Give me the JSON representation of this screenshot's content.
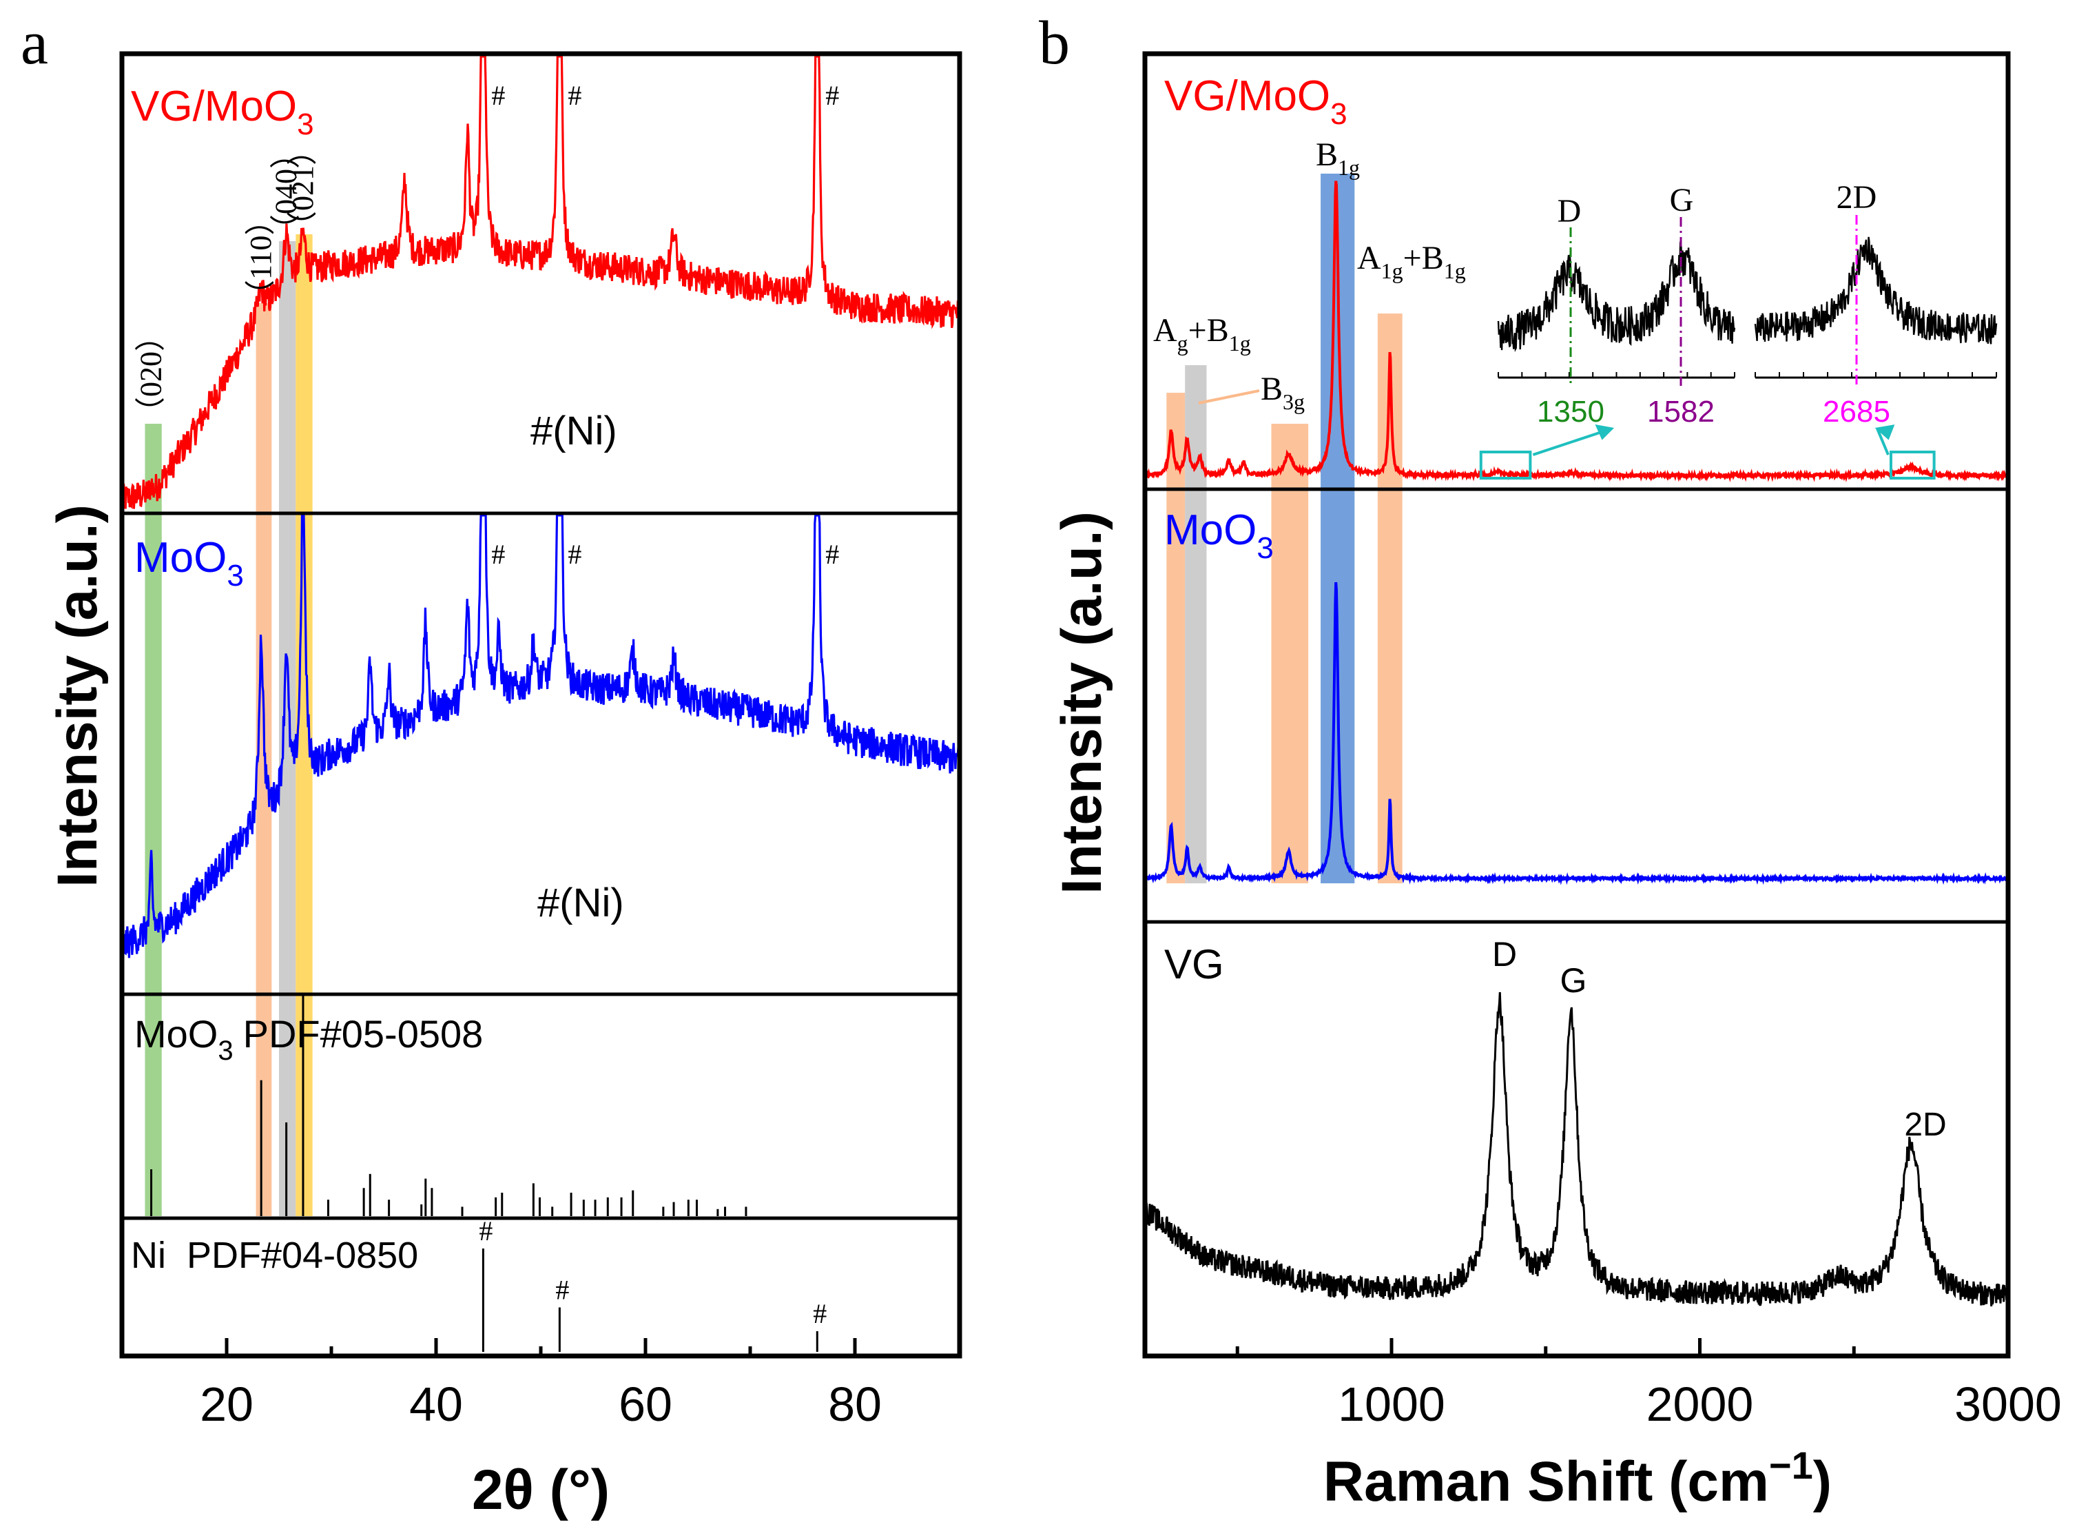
{
  "figure": {
    "panel_a_label": "a",
    "panel_b_label": "b"
  },
  "colors": {
    "vg_moo3": "#ff0000",
    "moo3": "#0000ff",
    "vg": "#000000",
    "band_green": "#8fcc7a",
    "band_orange": "#fbb98a",
    "band_gray": "#c4c4c4",
    "band_yellow": "#ffd24d",
    "band_blue": "#5b8fd6",
    "inset_box": "#1fbfbf",
    "d_line": "#1a8a1a",
    "g_line": "#8b008b",
    "d2_line": "#ff00ff"
  },
  "chart_data": [
    {
      "type": "line",
      "panel": "a",
      "title": "",
      "xlabel": "2θ (°)",
      "ylabel": "Intensity (a.u.)",
      "xlim": [
        10,
        90
      ],
      "xticks": [
        20,
        40,
        60,
        80
      ],
      "series": [
        {
          "name": "VG/MoO3",
          "label_main": "VG/MoO",
          "label_sub": "3",
          "color": "#ff0000",
          "baseline": [
            [
              10,
              0.02
            ],
            [
              13,
              0.04
            ],
            [
              17,
              0.22
            ],
            [
              20,
              0.38
            ],
            [
              23,
              0.55
            ],
            [
              26,
              0.65
            ],
            [
              30,
              0.7
            ],
            [
              40,
              0.74
            ],
            [
              50,
              0.72
            ],
            [
              60,
              0.68
            ],
            [
              70,
              0.64
            ],
            [
              80,
              0.58
            ],
            [
              90,
              0.56
            ]
          ],
          "peaks": [
            [
              12.8,
              0.03,
              0.12
            ],
            [
              23.3,
              0.07,
              0.3
            ],
            [
              25.7,
              0.15,
              0.3
            ],
            [
              27.3,
              0.12,
              0.3
            ],
            [
              37.0,
              0.22,
              0.25
            ],
            [
              43.0,
              0.35,
              0.2
            ],
            [
              44.5,
              2.6,
              0.12
            ],
            [
              51.8,
              2.6,
              0.12
            ],
            [
              62.7,
              0.12,
              0.3
            ],
            [
              76.4,
              2.6,
              0.12
            ]
          ],
          "noise": 0.045,
          "ni_marker_x": [
            44.5,
            51.8,
            76.4
          ],
          "ni_label": "#(Ni)",
          "hkl_labels": [
            {
              "text": "（020）",
              "x": 12.8
            },
            {
              "text": "（110）",
              "x": 23.3
            },
            {
              "text": "（040）",
              "x": 25.7
            },
            {
              "text": "（021）",
              "x": 27.3
            }
          ]
        },
        {
          "name": "MoO3",
          "label_main": "MoO",
          "label_sub": "3",
          "color": "#0000ff",
          "baseline": [
            [
              10,
              0.05
            ],
            [
              15,
              0.12
            ],
            [
              20,
              0.28
            ],
            [
              25,
              0.42
            ],
            [
              30,
              0.56
            ],
            [
              40,
              0.68
            ],
            [
              50,
              0.75
            ],
            [
              60,
              0.73
            ],
            [
              70,
              0.68
            ],
            [
              80,
              0.6
            ],
            [
              90,
              0.55
            ]
          ],
          "peaks": [
            [
              12.8,
              0.2,
              0.12
            ],
            [
              23.3,
              0.5,
              0.25
            ],
            [
              25.7,
              0.4,
              0.25
            ],
            [
              27.3,
              0.85,
              0.22
            ],
            [
              33.7,
              0.2,
              0.2
            ],
            [
              35.5,
              0.15,
              0.2
            ],
            [
              39.0,
              0.25,
              0.2
            ],
            [
              43.0,
              0.25,
              0.2
            ],
            [
              44.5,
              2.6,
              0.12
            ],
            [
              46.0,
              0.15,
              0.2
            ],
            [
              49.3,
              0.12,
              0.2
            ],
            [
              51.8,
              2.6,
              0.12
            ],
            [
              58.8,
              0.1,
              0.3
            ],
            [
              62.7,
              0.1,
              0.3
            ],
            [
              76.4,
              2.6,
              0.12
            ]
          ],
          "noise": 0.045,
          "ni_marker_x": [
            44.5,
            51.8,
            76.4
          ],
          "ni_label": "#(Ni)"
        },
        {
          "name": "MoO3 reference",
          "label_main": "MoO",
          "label_sub": "3",
          "label_rest": "PDF#05-0508",
          "color": "#000000",
          "sticks": [
            [
              12.8,
              0.2
            ],
            [
              23.3,
              0.58
            ],
            [
              25.7,
              0.4
            ],
            [
              27.3,
              0.95
            ],
            [
              29.7,
              0.07
            ],
            [
              33.1,
              0.12
            ],
            [
              33.7,
              0.18
            ],
            [
              35.5,
              0.07
            ],
            [
              38.6,
              0.05
            ],
            [
              39.0,
              0.16
            ],
            [
              39.6,
              0.12
            ],
            [
              42.5,
              0.04
            ],
            [
              45.7,
              0.08
            ],
            [
              46.3,
              0.1
            ],
            [
              49.3,
              0.14
            ],
            [
              49.9,
              0.08
            ],
            [
              51.1,
              0.04
            ],
            [
              52.9,
              0.1
            ],
            [
              54.1,
              0.07
            ],
            [
              55.2,
              0.07
            ],
            [
              56.4,
              0.08
            ],
            [
              57.7,
              0.08
            ],
            [
              58.8,
              0.11
            ],
            [
              61.7,
              0.04
            ],
            [
              62.7,
              0.06
            ],
            [
              64.1,
              0.07
            ],
            [
              64.9,
              0.07
            ],
            [
              66.9,
              0.03
            ],
            [
              67.6,
              0.04
            ],
            [
              69.6,
              0.04
            ]
          ]
        },
        {
          "name": "Ni reference",
          "label_rest": "Ni  PDF#04-0850",
          "color": "#000000",
          "sticks": [
            [
              44.5,
              1.0
            ],
            [
              51.8,
              0.43
            ],
            [
              76.4,
              0.2
            ]
          ],
          "ni_marker_x": [
            44.5,
            51.8,
            76.4
          ]
        }
      ],
      "bands": [
        {
          "x": [
            12.2,
            13.8
          ],
          "color": "#8fcc7a"
        },
        {
          "x": [
            22.8,
            24.3
          ],
          "color": "#fbb98a"
        },
        {
          "x": [
            25.0,
            26.6
          ],
          "color": "#c4c4c4"
        },
        {
          "x": [
            26.6,
            28.2
          ],
          "color": "#ffd24d"
        }
      ],
      "hash": "#"
    },
    {
      "type": "line",
      "panel": "b",
      "title": "",
      "xlabel_main": "Raman Shift (cm",
      "xlabel_sup": "−1",
      "xlabel_end": ")",
      "ylabel": "Intensity (a.u.)",
      "xlim": [
        200,
        3000
      ],
      "xticks": [
        1000,
        2000,
        3000
      ],
      "series": [
        {
          "name": "VG/MoO3",
          "label_main": "VG/MoO",
          "label_sub": "3",
          "color": "#ff0000",
          "peaks": [
            [
              285,
              0.15,
              8
            ],
            [
              337,
              0.12,
              8
            ],
            [
              378,
              0.06,
              8
            ],
            [
              472,
              0.05,
              8
            ],
            [
              520,
              0.04,
              8
            ],
            [
              666,
              0.07,
              15
            ],
            [
              820,
              1.0,
              9
            ],
            [
              995,
              0.42,
              5
            ],
            [
              1350,
              0.01,
              25
            ],
            [
              1582,
              0.008,
              25
            ],
            [
              2685,
              0.03,
              30
            ]
          ],
          "noise": 0.006,
          "mode_labels": [
            {
              "main": "A",
              "sub": "g",
              "mid": "+B",
              "sub2": "1g"
            },
            {
              "main": "B",
              "sub": "3g"
            },
            {
              "main": "B",
              "sub": "1g"
            },
            {
              "main": "A",
              "sub": "1g",
              "mid": "+B",
              "sub2": "1g"
            }
          ],
          "inset": {
            "peak_labels": [
              "D",
              "G",
              "2D"
            ],
            "values": [
              "1350",
              "1582",
              "2685"
            ]
          }
        },
        {
          "name": "MoO3",
          "label_main": "MoO",
          "label_sub": "3",
          "color": "#0000ff",
          "peaks": [
            [
              285,
              0.18,
              7
            ],
            [
              337,
              0.1,
              6
            ],
            [
              378,
              0.04,
              6
            ],
            [
              472,
              0.04,
              5
            ],
            [
              666,
              0.09,
              10
            ],
            [
              820,
              1.0,
              8
            ],
            [
              995,
              0.27,
              4
            ]
          ],
          "noise": 0.004
        },
        {
          "name": "VG",
          "label_main": "VG",
          "color": "#000000",
          "peaks": [
            [
              1350,
              0.72,
              28
            ],
            [
              1582,
              0.7,
              25
            ],
            [
              2450,
              0.04,
              50
            ],
            [
              2685,
              0.38,
              40
            ]
          ],
          "background": [
            [
              200,
              0.22
            ],
            [
              400,
              0.1
            ],
            [
              800,
              0.03
            ],
            [
              1000,
              0.02
            ],
            [
              3000,
              0.0
            ]
          ],
          "noise": 0.03,
          "peak_labels": [
            {
              "text": "D",
              "x": 1350
            },
            {
              "text": "G",
              "x": 1582
            },
            {
              "text": "2D",
              "x": 2685
            }
          ]
        }
      ],
      "bands": [
        {
          "x": [
            270,
            330
          ],
          "color": "#fbb98a"
        },
        {
          "x": [
            330,
            400
          ],
          "color": "#c4c4c4"
        },
        {
          "x": [
            610,
            730
          ],
          "color": "#fbb98a"
        },
        {
          "x": [
            770,
            880
          ],
          "color": "#5b8fd6"
        },
        {
          "x": [
            955,
            1035
          ],
          "color": "#fbb98a"
        }
      ]
    }
  ]
}
